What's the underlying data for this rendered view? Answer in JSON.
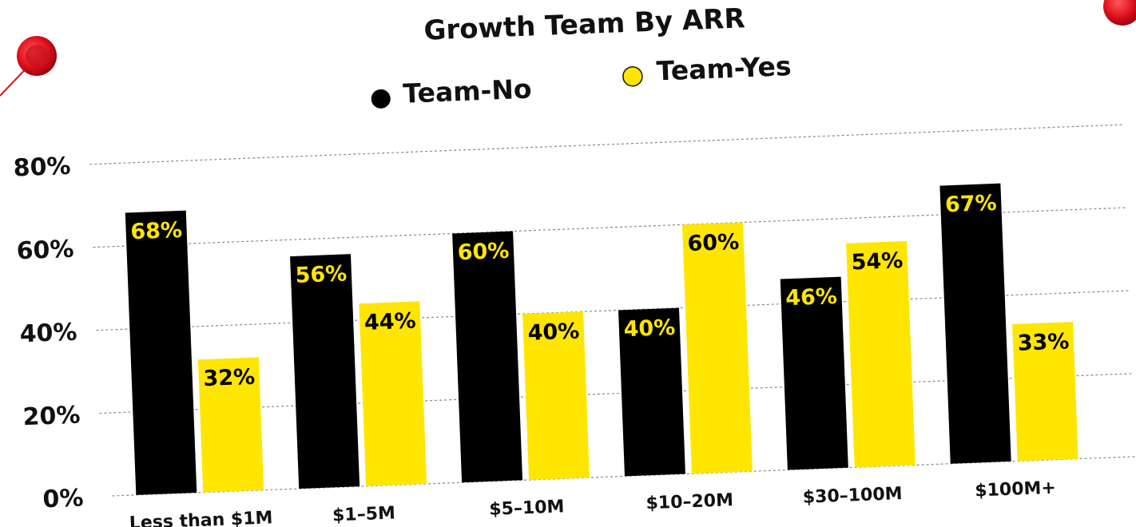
{
  "chart_data": {
    "type": "bar",
    "title": "Growth Team By ARR",
    "xlabel": "",
    "ylabel": "",
    "ylim": [
      0,
      80
    ],
    "yticks": [
      0,
      20,
      40,
      60,
      80
    ],
    "ytick_labels": [
      "0%",
      "20%",
      "40%",
      "60%",
      "80%"
    ],
    "grid": true,
    "legend_position": "top-center",
    "categories": [
      "Less than $1M",
      "$1–5M",
      "$5–10M",
      "$10–20M",
      "$30–100M",
      "$100M+"
    ],
    "series": [
      {
        "name": "Team-No",
        "color": "#000000",
        "label_color": "#FFE600",
        "values": [
          68,
          56,
          60,
          40,
          46,
          67
        ],
        "labels": [
          "68%",
          "56%",
          "60%",
          "40%",
          "46%",
          "67%"
        ]
      },
      {
        "name": "Team-Yes",
        "color": "#FFE600",
        "label_color": "#000000",
        "values": [
          32,
          44,
          40,
          60,
          54,
          33
        ],
        "labels": [
          "32%",
          "44%",
          "40%",
          "60%",
          "54%",
          "33%"
        ]
      }
    ]
  },
  "colors": {
    "accent_red": "#E0141E",
    "gridline": "#888888"
  },
  "icons": [
    "red-pushpin-icon",
    "red-pushpin-icon"
  ]
}
